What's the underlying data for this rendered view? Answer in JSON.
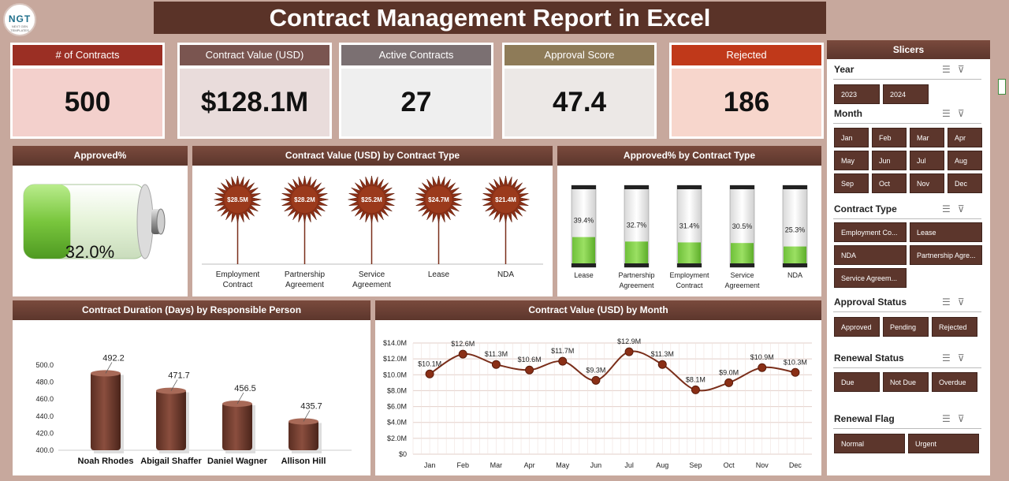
{
  "header": {
    "title": "Contract Management Report in Excel",
    "logo_text": "NGT",
    "logo_sub": "NEXT GEN TEMPLATES"
  },
  "kpis": [
    {
      "label": "# of Contracts",
      "value": "500",
      "head_color": "#9b2f24",
      "body_color": "#f3d0cc"
    },
    {
      "label": "Contract Value (USD)",
      "value": "$128.1M",
      "head_color": "#7a5550",
      "body_color": "#e9dcdb"
    },
    {
      "label": "Active Contracts",
      "value": "27",
      "head_color": "#7b7072",
      "body_color": "#efefef"
    },
    {
      "label": "Approval Score",
      "value": "47.4",
      "head_color": "#8e7b58",
      "body_color": "#ece8e6"
    },
    {
      "label": "Rejected",
      "value": "186",
      "head_color": "#c0391a",
      "body_color": "#f7d6cc"
    }
  ],
  "approved_panel": {
    "title": "Approved%",
    "value": "32.0%",
    "fraction": 0.32
  },
  "value_by_type": {
    "title": "Contract Value (USD) by Contract Type",
    "chart_data": {
      "type": "bar",
      "categories": [
        "Employment Contract",
        "Partnership Agreement",
        "Service Agreement",
        "Lease",
        "NDA"
      ],
      "values": [
        28.5,
        28.2,
        25.2,
        24.7,
        21.4
      ],
      "labels": [
        "$28.5M",
        "$28.2M",
        "$25.2M",
        "$24.7M",
        "$21.4M"
      ],
      "unit": "USD M"
    },
    "cat_lines": [
      [
        "Employment",
        "Contract"
      ],
      [
        "Partnership",
        "Agreement"
      ],
      [
        "Service",
        "Agreement"
      ],
      [
        "Lease"
      ],
      [
        "NDA"
      ]
    ]
  },
  "approved_by_type": {
    "title": "Approved% by Contract Type",
    "chart_data": {
      "type": "bar",
      "categories": [
        "Lease",
        "Partnership Agreement",
        "Employment Contract",
        "Service Agreement",
        "NDA"
      ],
      "values": [
        39.4,
        32.7,
        31.4,
        30.5,
        25.3
      ],
      "labels": [
        "39.4%",
        "32.7%",
        "31.4%",
        "30.5%",
        "25.3%"
      ],
      "ylim": [
        0,
        100
      ]
    },
    "cat_lines": [
      [
        "Lease"
      ],
      [
        "Partnership",
        "Agreement"
      ],
      [
        "Employment",
        "Contract"
      ],
      [
        "Service",
        "Agreement"
      ],
      [
        "NDA"
      ]
    ]
  },
  "duration_by_person": {
    "title": "Contract Duration (Days) by Responsible Person",
    "chart_data": {
      "type": "bar",
      "categories": [
        "Noah Rhodes",
        "Abigail Shaffer",
        "Daniel Wagner",
        "Allison Hill"
      ],
      "values": [
        492.2,
        471.7,
        456.5,
        435.7
      ],
      "labels": [
        "492.2",
        "471.7",
        "456.5",
        "435.7"
      ],
      "ylim": [
        400,
        500
      ],
      "yticks": [
        "500.0",
        "480.0",
        "460.0",
        "440.0",
        "420.0",
        "400.0"
      ]
    }
  },
  "value_by_month": {
    "title": "Contract Value (USD) by Month",
    "chart_data": {
      "type": "line",
      "categories": [
        "Jan",
        "Feb",
        "Mar",
        "Apr",
        "May",
        "Jun",
        "Jul",
        "Aug",
        "Sep",
        "Oct",
        "Nov",
        "Dec"
      ],
      "values": [
        10.1,
        12.6,
        11.3,
        10.6,
        11.7,
        9.3,
        12.9,
        11.3,
        8.1,
        9.0,
        10.9,
        10.3
      ],
      "labels": [
        "$10.1M",
        "$12.6M",
        "$11.3M",
        "$10.6M",
        "$11.7M",
        "$9.3M",
        "$12.9M",
        "$11.3M",
        "$8.1M",
        "$9.0M",
        "$10.9M",
        "$10.3M"
      ],
      "ylim": [
        0,
        14
      ],
      "yticks": [
        "$14.0M",
        "$12.0M",
        "$10.0M",
        "$8.0M",
        "$6.0M",
        "$4.0M",
        "$2.0M",
        "$0"
      ]
    }
  },
  "slicers": {
    "title": "Slicers",
    "year": {
      "label": "Year",
      "items": [
        "2023",
        "2024"
      ]
    },
    "month": {
      "label": "Month",
      "items": [
        "Jan",
        "Feb",
        "Mar",
        "Apr",
        "May",
        "Jun",
        "Jul",
        "Aug",
        "Sep",
        "Oct",
        "Nov",
        "Dec"
      ]
    },
    "contract_type": {
      "label": "Contract Type",
      "items": [
        "Employment Co...",
        "Lease",
        "NDA",
        "Partnership Agre...",
        "Service Agreem..."
      ]
    },
    "approval_status": {
      "label": "Approval Status",
      "items": [
        "Approved",
        "Pending",
        "Rejected"
      ]
    },
    "renewal_status": {
      "label": "Renewal Status",
      "items": [
        "Due",
        "Not Due",
        "Overdue"
      ]
    },
    "renewal_flag": {
      "label": "Renewal Flag",
      "items": [
        "Normal",
        "Urgent"
      ]
    }
  },
  "colors": {
    "brown": "#5c362c",
    "dark": "#7a2e1a",
    "green": "#8cd44f",
    "line": "#7a2e1a"
  }
}
